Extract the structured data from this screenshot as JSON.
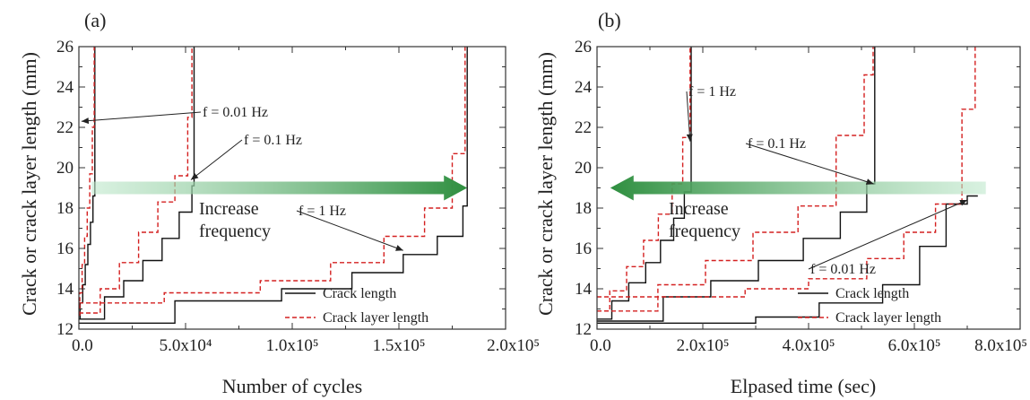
{
  "colors": {
    "crack": "#111111",
    "layer": "#d42020",
    "arrow": "#3c9a4a",
    "frame": "#333333"
  },
  "legend": {
    "crack_label": "Crack length",
    "layer_label": "Crack layer length"
  },
  "chart_data": [
    {
      "type": "line",
      "panel_label": "(a)",
      "xlabel": "Number of cycles",
      "ylabel": "Crack or crack layer length (mm)",
      "xlim": [
        0,
        200000
      ],
      "ylim": [
        12,
        26
      ],
      "grid": false,
      "legend_position": "bottom-right",
      "xticks": [
        {
          "value": 0,
          "label": "0.0"
        },
        {
          "value": 50000,
          "label": "5.0x10⁴"
        },
        {
          "value": 100000,
          "label": "1.0x10⁵"
        },
        {
          "value": 150000,
          "label": "1.5x10⁵"
        },
        {
          "value": 200000,
          "label": "2.0x10⁵"
        }
      ],
      "yticks": [
        12,
        14,
        16,
        18,
        20,
        22,
        24,
        26
      ],
      "annotations": [
        {
          "id": "f001",
          "text": "f = 0.01 Hz",
          "tip": [
            1200,
            22.3
          ]
        },
        {
          "id": "f01",
          "text": "f = 0.1 Hz",
          "tip": [
            52500,
            19.4
          ]
        },
        {
          "id": "f1",
          "text": "f = 1 Hz",
          "tip": [
            152000,
            15.9
          ]
        }
      ],
      "arrow": {
        "label_lines": [
          "Increase",
          "frequency"
        ],
        "from_x": 6000,
        "to_x": 182000,
        "y": 19.0
      },
      "series": [
        {
          "kind": "crack",
          "x": [
            0,
            600,
            600,
            1800,
            1800,
            3000,
            3000,
            4200,
            4200,
            5400,
            5400,
            6600,
            6600,
            7500,
            7500
          ],
          "y": [
            12.5,
            12.5,
            13.3,
            13.3,
            14.2,
            14.2,
            15.2,
            15.2,
            16.2,
            16.2,
            17.3,
            17.3,
            18.6,
            18.6,
            26
          ]
        },
        {
          "kind": "layer",
          "x": [
            0,
            400,
            400,
            1500,
            1500,
            2700,
            2700,
            3900,
            3900,
            5100,
            5100,
            6300,
            6300,
            7200,
            7200
          ],
          "y": [
            12.7,
            12.7,
            13.8,
            13.8,
            15.2,
            15.2,
            16.6,
            16.6,
            18.0,
            18.0,
            19.7,
            19.7,
            22.0,
            22.0,
            26
          ]
        },
        {
          "kind": "crack",
          "x": [
            0,
            12000,
            12000,
            21000,
            21000,
            30000,
            30000,
            39000,
            39000,
            47000,
            47000,
            53000,
            53000,
            54000,
            54000
          ],
          "y": [
            12.5,
            12.5,
            13.6,
            13.6,
            14.4,
            14.4,
            15.4,
            15.4,
            16.5,
            16.5,
            17.8,
            17.8,
            19.1,
            19.1,
            26
          ]
        },
        {
          "kind": "layer",
          "x": [
            0,
            10000,
            10000,
            19000,
            19000,
            28000,
            28000,
            37000,
            37000,
            45000,
            45000,
            51000,
            51000,
            53000,
            53000
          ],
          "y": [
            12.8,
            12.8,
            14.0,
            14.0,
            15.3,
            15.3,
            16.8,
            16.8,
            18.3,
            18.3,
            19.6,
            19.6,
            22.5,
            22.5,
            26
          ]
        },
        {
          "kind": "crack",
          "x": [
            0,
            45000,
            45000,
            95000,
            95000,
            128000,
            128000,
            152000,
            152000,
            168000,
            168000,
            180000,
            180000,
            182000,
            182000
          ],
          "y": [
            12.3,
            12.3,
            13.4,
            13.4,
            14.0,
            14.0,
            14.8,
            14.8,
            15.7,
            15.7,
            16.6,
            16.6,
            18.1,
            18.1,
            26
          ]
        },
        {
          "kind": "layer",
          "x": [
            0,
            40000,
            40000,
            85000,
            85000,
            118000,
            118000,
            143000,
            143000,
            162000,
            162000,
            175000,
            175000,
            181000,
            181000
          ],
          "y": [
            13.3,
            13.3,
            13.8,
            13.8,
            14.4,
            14.4,
            15.3,
            15.3,
            16.6,
            16.6,
            18.0,
            18.0,
            20.7,
            20.7,
            26
          ]
        }
      ]
    },
    {
      "type": "line",
      "panel_label": "(b)",
      "xlabel": "Elpased time (sec)",
      "ylabel": "Crack or crack layer length (mm)",
      "xlim": [
        0,
        800000
      ],
      "ylim": [
        12,
        26
      ],
      "grid": false,
      "legend_position": "bottom-right",
      "xticks": [
        {
          "value": 0,
          "label": "0.0"
        },
        {
          "value": 200000,
          "label": "2.0x10⁵"
        },
        {
          "value": 400000,
          "label": "4.0x10⁵"
        },
        {
          "value": 600000,
          "label": "6.0x10⁵"
        },
        {
          "value": 800000,
          "label": "8.0x10⁵"
        }
      ],
      "yticks": [
        12,
        14,
        16,
        18,
        20,
        22,
        24,
        26
      ],
      "annotations": [
        {
          "id": "f1",
          "text": "f = 1 Hz",
          "tip": [
            176000,
            21.3
          ]
        },
        {
          "id": "f01",
          "text": "f = 0.1 Hz",
          "tip": [
            523000,
            19.2
          ]
        },
        {
          "id": "f001",
          "text": "f = 0.01 Hz",
          "tip": [
            700000,
            18.4
          ]
        }
      ],
      "arrow": {
        "label_lines": [
          "Increase",
          "frequency"
        ],
        "from_x": 735000,
        "to_x": 25000,
        "y": 19.0
      },
      "series": [
        {
          "kind": "crack",
          "x": [
            0,
            28000,
            28000,
            60000,
            60000,
            92000,
            92000,
            120000,
            120000,
            145000,
            145000,
            165000,
            165000,
            178000,
            178000
          ],
          "y": [
            12.5,
            12.5,
            13.4,
            13.4,
            14.3,
            14.3,
            15.3,
            15.3,
            16.4,
            16.4,
            17.5,
            17.5,
            18.8,
            18.8,
            26
          ]
        },
        {
          "kind": "layer",
          "x": [
            0,
            24000,
            24000,
            56000,
            56000,
            88000,
            88000,
            116000,
            116000,
            142000,
            142000,
            162000,
            162000,
            176000,
            176000
          ],
          "y": [
            12.9,
            12.9,
            13.9,
            13.9,
            15.1,
            15.1,
            16.4,
            16.4,
            17.7,
            17.7,
            19.2,
            19.2,
            21.5,
            21.5,
            26
          ]
        },
        {
          "kind": "crack",
          "x": [
            0,
            125000,
            125000,
            215000,
            215000,
            305000,
            305000,
            390000,
            390000,
            460000,
            460000,
            510000,
            510000,
            525000,
            525000
          ],
          "y": [
            12.4,
            12.4,
            13.6,
            13.6,
            14.4,
            14.4,
            15.4,
            15.4,
            16.5,
            16.5,
            17.8,
            17.8,
            19.2,
            19.2,
            26
          ]
        },
        {
          "kind": "layer",
          "x": [
            0,
            115000,
            115000,
            205000,
            205000,
            295000,
            295000,
            380000,
            380000,
            452000,
            452000,
            505000,
            505000,
            522000,
            522000
          ],
          "y": [
            12.9,
            12.9,
            14.2,
            14.2,
            15.4,
            15.4,
            16.8,
            16.8,
            18.1,
            18.1,
            21.6,
            21.6,
            24.6,
            24.6,
            26
          ]
        },
        {
          "kind": "crack",
          "x": [
            0,
            300000,
            300000,
            420000,
            420000,
            540000,
            540000,
            610000,
            610000,
            660000,
            660000,
            700000,
            700000,
            720000
          ],
          "y": [
            12.3,
            12.3,
            12.6,
            12.6,
            13.3,
            13.3,
            14.2,
            14.2,
            16.1,
            16.1,
            18.2,
            18.2,
            18.6,
            18.6
          ]
        },
        {
          "kind": "layer",
          "x": [
            0,
            280000,
            280000,
            400000,
            400000,
            510000,
            510000,
            580000,
            580000,
            640000,
            640000,
            690000,
            690000,
            715000,
            715000
          ],
          "y": [
            13.6,
            13.6,
            14.0,
            14.0,
            14.5,
            14.5,
            15.5,
            15.5,
            16.8,
            16.8,
            18.2,
            18.2,
            22.9,
            22.9,
            26
          ]
        }
      ]
    }
  ]
}
